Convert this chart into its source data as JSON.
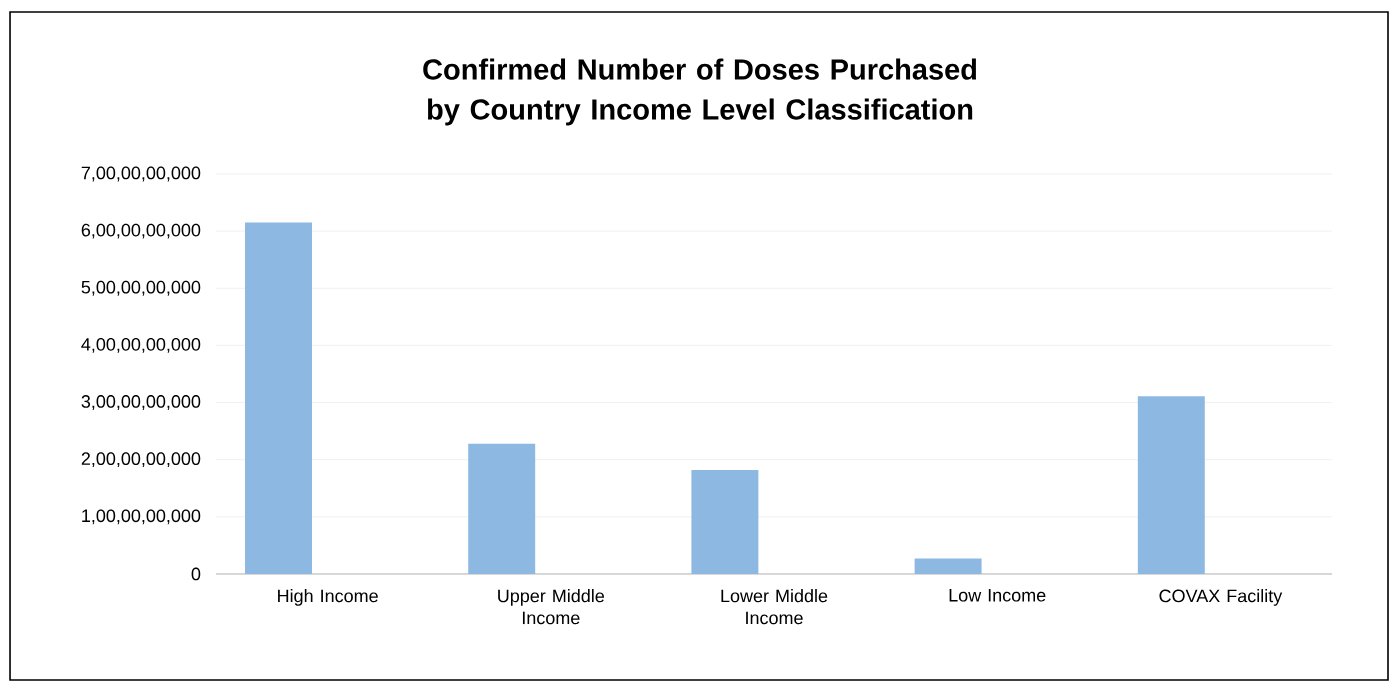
{
  "chart_data": {
    "type": "bar",
    "title": "Confirmed Number of Doses Purchased by Country Income Level Classification",
    "categories": [
      "High Income",
      "Upper Middle Income",
      "Lower Middle Income",
      "Low Income",
      "COVAX Facility"
    ],
    "values": [
      6150000000,
      2280000000,
      1820000000,
      270000000,
      3110000000
    ],
    "color": "#8cb8e2",
    "ylim": [
      0,
      7000000000
    ],
    "yticks": [
      0,
      {
        "value": 1000000000,
        "label": "1,00,00,00,000"
      },
      {
        "value": 2000000000,
        "label": "2,00,00,00,000"
      },
      {
        "value": 3000000000,
        "label": "3,00,00,00,000"
      },
      {
        "value": 4000000000,
        "label": "4,00,00,00,000"
      },
      {
        "value": 5000000000,
        "label": "5,00,00,00,000"
      },
      {
        "value": 6000000000,
        "label": "6,00,00,00,000"
      },
      {
        "value": 7000000000,
        "label": "7,00,00,00,000"
      }
    ],
    "grid": "y"
  }
}
